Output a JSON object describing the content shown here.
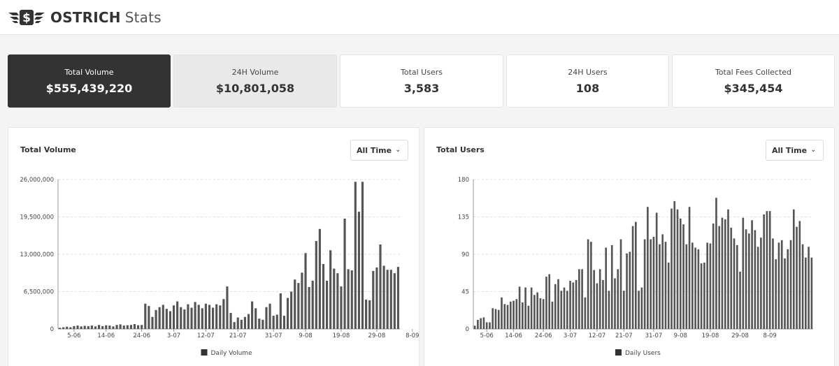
{
  "header": {
    "logo_icon": "dollar-wings-logo",
    "brand_bold": "OSTRICH",
    "brand_light": "Stats"
  },
  "stats": [
    {
      "label": "Total Volume",
      "value": "$555,439,220"
    },
    {
      "label": "24H Volume",
      "value": "$10,801,058"
    },
    {
      "label": "Total Users",
      "value": "3,583"
    },
    {
      "label": "24H Users",
      "value": "108"
    },
    {
      "label": "Total Fees Collected",
      "value": "$345,454"
    }
  ],
  "panels": {
    "volume": {
      "title": "Total Volume",
      "dropdown": "All Time",
      "chevron_icon": "chevron-down-icon"
    },
    "users": {
      "title": "Total Users",
      "dropdown": "All Time",
      "chevron_icon": "chevron-down-icon"
    }
  },
  "colors": {
    "bar": "#555555",
    "dark_card": "#333333",
    "grid": "#dddddd"
  },
  "chart_data": [
    {
      "type": "bar",
      "title": "",
      "xlabel": "",
      "ylabel": "",
      "ylim": [
        0,
        26000000
      ],
      "yticks": [
        "0",
        "6,500,000",
        "13,000,000",
        "19,500,000",
        "26,000,000"
      ],
      "ytick_values": [
        0,
        6500000,
        13000000,
        19500000,
        26000000
      ],
      "xticks": [
        {
          "label": "5-06",
          "index": 4
        },
        {
          "label": "14-06",
          "index": 13
        },
        {
          "label": "24-06",
          "index": 23
        },
        {
          "label": "3-07",
          "index": 32
        },
        {
          "label": "12-07",
          "index": 41
        },
        {
          "label": "21-07",
          "index": 50
        },
        {
          "label": "31-07",
          "index": 60
        },
        {
          "label": "9-08",
          "index": 69
        },
        {
          "label": "19-08",
          "index": 79
        },
        {
          "label": "29-08",
          "index": 89
        },
        {
          "label": "8-09",
          "index": 99
        }
      ],
      "grid": true,
      "legend": "bottom",
      "series": [
        {
          "name": "Daily Volume",
          "values": [
            200000,
            300000,
            400000,
            300000,
            500000,
            600000,
            450000,
            550000,
            500000,
            600000,
            450000,
            700000,
            500000,
            650000,
            600000,
            450000,
            700000,
            800000,
            600000,
            650000,
            700000,
            850000,
            650000,
            700000,
            4400000,
            4000000,
            2100000,
            3300000,
            3800000,
            4200000,
            3500000,
            3100000,
            4100000,
            4800000,
            3800000,
            3400000,
            4300000,
            3700000,
            4700000,
            4200000,
            3600000,
            4400000,
            4200000,
            3700000,
            4300000,
            4100000,
            5200000,
            7400000,
            2800000,
            1200000,
            2000000,
            1600000,
            2100000,
            2600000,
            4800000,
            3600000,
            1800000,
            1600000,
            3800000,
            4400000,
            2300000,
            2500000,
            6200000,
            2300000,
            5400000,
            6500000,
            8600000,
            8000000,
            9800000,
            13200000,
            7300000,
            8400000,
            15300000,
            17400000,
            11300000,
            8400000,
            13700000,
            10500000,
            9700000,
            7400000,
            19200000,
            10400000,
            10200000,
            25600000,
            20400000,
            25600000,
            5100000,
            5000000,
            10100000,
            10700000,
            14700000,
            11000000,
            10300000,
            10300000,
            9700000,
            10800000
          ]
        }
      ]
    },
    {
      "type": "bar",
      "title": "",
      "xlabel": "",
      "ylabel": "",
      "ylim": [
        0,
        180
      ],
      "yticks": [
        "0",
        "45",
        "90",
        "135",
        "180"
      ],
      "ytick_values": [
        0,
        45,
        90,
        135,
        180
      ],
      "xticks": [
        {
          "label": "5-06",
          "index": 4
        },
        {
          "label": "14-06",
          "index": 13
        },
        {
          "label": "24-06",
          "index": 23
        },
        {
          "label": "3-07",
          "index": 32
        },
        {
          "label": "12-07",
          "index": 41
        },
        {
          "label": "21-07",
          "index": 50
        },
        {
          "label": "31-07",
          "index": 60
        },
        {
          "label": "9-08",
          "index": 69
        },
        {
          "label": "19-08",
          "index": 79
        },
        {
          "label": "29-08",
          "index": 89
        },
        {
          "label": "8-09",
          "index": 99
        }
      ],
      "grid": true,
      "legend": "bottom",
      "series": [
        {
          "name": "Daily Users",
          "values": [
            4,
            11,
            13,
            14,
            8,
            8,
            25,
            24,
            23,
            38,
            30,
            29,
            33,
            34,
            36,
            51,
            32,
            50,
            28,
            50,
            41,
            44,
            37,
            36,
            63,
            66,
            33,
            54,
            60,
            46,
            50,
            46,
            58,
            56,
            59,
            72,
            72,
            38,
            108,
            105,
            71,
            55,
            72,
            59,
            98,
            46,
            101,
            61,
            72,
            108,
            46,
            91,
            93,
            124,
            129,
            46,
            50,
            108,
            147,
            108,
            111,
            140,
            102,
            114,
            105,
            80,
            145,
            154,
            144,
            133,
            126,
            102,
            147,
            104,
            98,
            96,
            79,
            80,
            104,
            103,
            127,
            158,
            124,
            134,
            132,
            144,
            122,
            109,
            101,
            69,
            134,
            120,
            115,
            131,
            119,
            99,
            110,
            138,
            142,
            142,
            109,
            84,
            104,
            107,
            85,
            96,
            107,
            144,
            123,
            130,
            102,
            86,
            99,
            86
          ]
        }
      ]
    }
  ]
}
